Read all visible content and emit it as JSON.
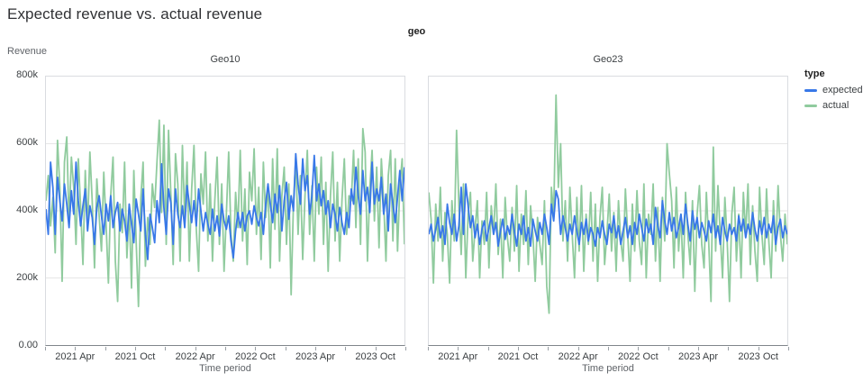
{
  "page": {
    "title": "Expected revenue vs. actual revenue"
  },
  "facet": {
    "title": "geo"
  },
  "axes": {
    "y_title": "Revenue",
    "x_title": "Time period",
    "y_ticks": [
      {
        "label": "800k",
        "value": 800
      },
      {
        "label": "600k",
        "value": 600
      },
      {
        "label": "400k",
        "value": 400
      },
      {
        "label": "200k",
        "value": 200
      },
      {
        "label": "0.00",
        "value": 0
      }
    ],
    "x_tick_labels": [
      "2021 Apr",
      "2021 Oct",
      "2022 Apr",
      "2022 Oct",
      "2023 Apr",
      "2023 Oct"
    ],
    "x_label_quarters": [
      1,
      3,
      5,
      7,
      9,
      11
    ],
    "x_quarters_total": 12
  },
  "legend": {
    "title": "type",
    "items": [
      {
        "label": "expected",
        "color": "#3878e8"
      },
      {
        "label": "actual",
        "color": "#90cb9e"
      }
    ]
  },
  "colors": {
    "grid": "#e6e6e6",
    "border": "#dadce0",
    "axis_line": "#80868b",
    "tick": "#9aa0a6"
  },
  "chart_data": [
    {
      "type": "line",
      "panel": "Geo10",
      "x_domain": [
        "2021-01",
        "2024-01"
      ],
      "x_unit": "week",
      "y_unit": "thousands",
      "ylim": [
        0,
        800
      ],
      "grid": "horizontal",
      "series": [
        {
          "name": "expected",
          "color": "#3878e8",
          "values": [
            405,
            330,
            545,
            470,
            330,
            500,
            430,
            370,
            480,
            420,
            350,
            460,
            390,
            545,
            430,
            355,
            415,
            465,
            340,
            415,
            380,
            300,
            410,
            445,
            385,
            330,
            420,
            370,
            445,
            350,
            395,
            425,
            340,
            405,
            370,
            310,
            420,
            360,
            305,
            435,
            390,
            340,
            465,
            330,
            255,
            390,
            350,
            305,
            430,
            365,
            540,
            410,
            330,
            465,
            425,
            300,
            465,
            390,
            350,
            415,
            350,
            475,
            420,
            365,
            430,
            355,
            465,
            400,
            340,
            395,
            360,
            330,
            405,
            340,
            385,
            325,
            420,
            370,
            345,
            385,
            310,
            260,
            340,
            395,
            350,
            395,
            340,
            385,
            400,
            360,
            415,
            380,
            355,
            395,
            330,
            420,
            480,
            420,
            365,
            450,
            395,
            475,
            340,
            430,
            485,
            375,
            445,
            400,
            570,
            480,
            420,
            555,
            460,
            505,
            390,
            445,
            565,
            430,
            480,
            415,
            460,
            390,
            430,
            350,
            420,
            390,
            340,
            410,
            365,
            330,
            395,
            350,
            465,
            420,
            530,
            445,
            390,
            520,
            430,
            470,
            395,
            545,
            420,
            465,
            430,
            500,
            390,
            450,
            340,
            480,
            420,
            365,
            440,
            520,
            430,
            530
          ]
        },
        {
          "name": "actual",
          "color": "#90cb9e",
          "values": [
            430,
            505,
            355,
            440,
            275,
            610,
            470,
            190,
            545,
            620,
            360,
            560,
            470,
            300,
            555,
            410,
            240,
            520,
            345,
            575,
            430,
            230,
            495,
            385,
            280,
            515,
            360,
            185,
            445,
            560,
            250,
            130,
            420,
            335,
            545,
            260,
            410,
            170,
            520,
            310,
            115,
            435,
            545,
            235,
            380,
            300,
            480,
            410,
            545,
            670,
            395,
            655,
            300,
            640,
            450,
            240,
            570,
            480,
            250,
            595,
            380,
            545,
            250,
            465,
            595,
            345,
            220,
            510,
            420,
            575,
            310,
            480,
            250,
            430,
            560,
            300,
            480,
            220,
            390,
            575,
            330,
            250,
            455,
            350,
            580,
            310,
            465,
            240,
            515,
            430,
            585,
            330,
            470,
            255,
            545,
            380,
            480,
            230,
            555,
            345,
            585,
            250,
            445,
            530,
            300,
            480,
            150,
            420,
            560,
            330,
            505,
            255,
            445,
            580,
            330,
            475,
            250,
            530,
            390,
            560,
            300,
            485,
            220,
            445,
            575,
            310,
            485,
            250,
            435,
            555,
            330,
            445,
            430,
            580,
            350,
            555,
            300,
            645,
            575,
            250,
            465,
            580,
            370,
            530,
            290,
            555,
            430,
            250,
            505,
            580,
            310,
            555,
            280,
            475,
            555,
            300
          ]
        }
      ]
    },
    {
      "type": "line",
      "panel": "Geo23",
      "x_domain": [
        "2021-01",
        "2024-01"
      ],
      "x_unit": "week",
      "y_unit": "thousands",
      "ylim": [
        0,
        800
      ],
      "grid": "horizontal",
      "series": [
        {
          "name": "expected",
          "color": "#3878e8",
          "values": [
            330,
            360,
            310,
            345,
            380,
            320,
            355,
            300,
            420,
            365,
            330,
            390,
            310,
            355,
            470,
            330,
            480,
            415,
            350,
            385,
            320,
            360,
            300,
            345,
            370,
            310,
            350,
            385,
            330,
            365,
            295,
            340,
            375,
            315,
            355,
            330,
            390,
            340,
            295,
            360,
            330,
            385,
            310,
            350,
            295,
            375,
            340,
            310,
            365,
            330,
            390,
            350,
            300,
            420,
            370,
            460,
            435,
            330,
            385,
            350,
            310,
            360,
            330,
            385,
            340,
            300,
            365,
            330,
            375,
            310,
            350,
            330,
            295,
            350,
            320,
            370,
            330,
            300,
            360,
            335,
            385,
            320,
            355,
            300,
            340,
            380,
            320,
            355,
            300,
            365,
            330,
            390,
            350,
            310,
            375,
            335,
            360,
            300,
            410,
            355,
            320,
            430,
            370,
            330,
            395,
            340,
            380,
            320,
            350,
            390,
            330,
            420,
            360,
            310,
            400,
            345,
            380,
            320,
            365,
            340,
            310,
            370,
            335,
            390,
            320,
            355,
            300,
            380,
            340,
            310,
            360,
            330,
            350,
            310,
            385,
            340,
            375,
            320,
            360,
            330,
            395,
            345,
            310,
            370,
            330,
            380,
            320,
            360,
            335,
            385,
            300,
            350,
            375,
            320,
            355,
            330
          ]
        },
        {
          "name": "actual",
          "color": "#90cb9e",
          "values": [
            455,
            375,
            185,
            420,
            310,
            470,
            250,
            395,
            330,
            185,
            430,
            310,
            640,
            420,
            270,
            480,
            200,
            390,
            455,
            250,
            345,
            430,
            200,
            370,
            300,
            455,
            230,
            415,
            330,
            480,
            270,
            375,
            200,
            440,
            320,
            250,
            410,
            280,
            475,
            220,
            390,
            300,
            460,
            240,
            415,
            330,
            190,
            380,
            300,
            240,
            430,
            175,
            95,
            470,
            390,
            745,
            470,
            600,
            310,
            430,
            250,
            470,
            330,
            200,
            440,
            280,
            475,
            220,
            390,
            300,
            455,
            250,
            420,
            190,
            380,
            470,
            240,
            330,
            450,
            280,
            395,
            220,
            430,
            310,
            250,
            465,
            330,
            190,
            420,
            280,
            460,
            310,
            240,
            480,
            200,
            390,
            330,
            480,
            250,
            410,
            190,
            440,
            310,
            600,
            510,
            430,
            230,
            470,
            280,
            390,
            200,
            455,
            330,
            240,
            430,
            160,
            390,
            475,
            300,
            230,
            455,
            310,
            130,
            590,
            280,
            475,
            330,
            200,
            440,
            310,
            130,
            390,
            470,
            250,
            390,
            200,
            455,
            330,
            480,
            240,
            415,
            280,
            190,
            470,
            330,
            240,
            465,
            310,
            200,
            430,
            280,
            475,
            330,
            250,
            390,
            300
          ]
        }
      ]
    }
  ]
}
